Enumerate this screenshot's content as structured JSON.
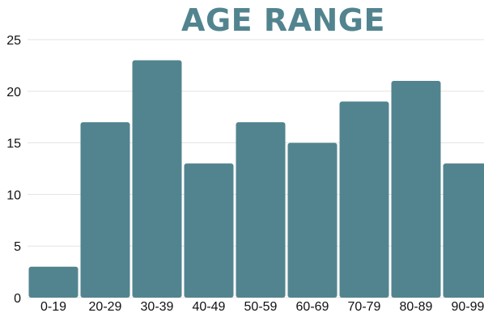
{
  "chart_data": {
    "type": "bar",
    "title": "AGE RANGE",
    "xlabel": "",
    "ylabel": "",
    "categories": [
      "0-19",
      "20-29",
      "30-39",
      "40-49",
      "50-59",
      "60-69",
      "70-79",
      "80-89",
      "90-99"
    ],
    "values": [
      3,
      17,
      23,
      13,
      17,
      15,
      19,
      21,
      13
    ],
    "ylim": [
      0,
      25
    ],
    "yticks": [
      0,
      5,
      10,
      15,
      20,
      25
    ],
    "grid": true,
    "legend": "none",
    "bar_color": "#52848f",
    "title_color": "#52848f"
  }
}
